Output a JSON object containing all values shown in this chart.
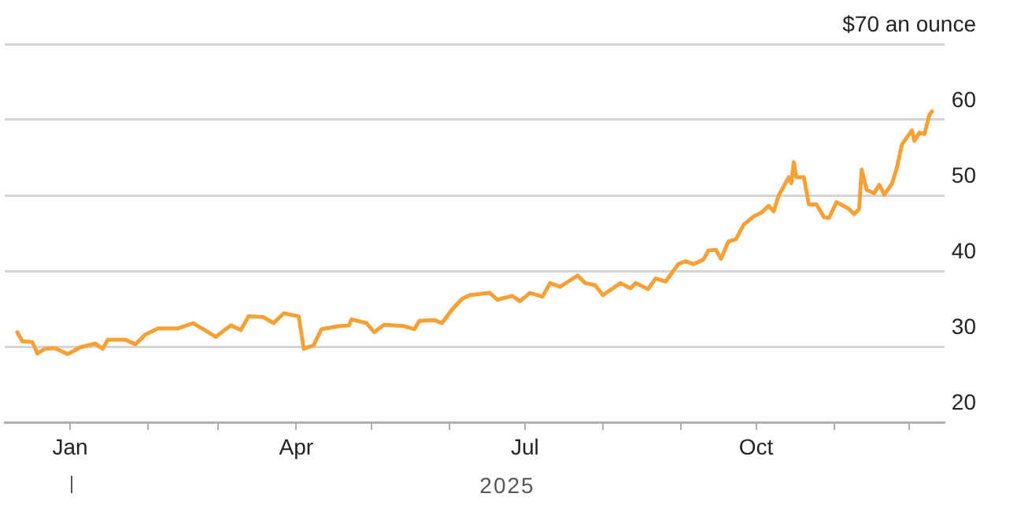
{
  "chart_data": {
    "type": "line",
    "x": [
      "2024-12-11",
      "2024-12-13",
      "2024-12-17",
      "2024-12-19",
      "2024-12-22",
      "2024-12-26",
      "2024-12-31",
      "2025-01-05",
      "2025-01-11",
      "2025-01-14",
      "2025-01-16",
      "2025-01-23",
      "2025-01-27",
      "2025-01-31",
      "2025-02-05",
      "2025-02-13",
      "2025-02-19",
      "2025-02-28",
      "2025-03-06",
      "2025-03-10",
      "2025-03-13",
      "2025-03-19",
      "2025-03-23",
      "2025-03-27",
      "2025-04-02",
      "2025-04-04",
      "2025-04-08",
      "2025-04-11",
      "2025-04-18",
      "2025-04-22",
      "2025-04-23",
      "2025-04-29",
      "2025-05-02",
      "2025-05-06",
      "2025-05-14",
      "2025-05-18",
      "2025-05-20",
      "2025-05-26",
      "2025-05-29",
      "2025-06-02",
      "2025-06-06",
      "2025-06-09",
      "2025-06-17",
      "2025-06-20",
      "2025-06-26",
      "2025-06-29",
      "2025-07-03",
      "2025-07-08",
      "2025-07-11",
      "2025-07-15",
      "2025-07-22",
      "2025-07-25",
      "2025-07-29",
      "2025-08-01",
      "2025-08-08",
      "2025-08-12",
      "2025-08-14",
      "2025-08-19",
      "2025-08-22",
      "2025-08-26",
      "2025-08-31",
      "2025-09-03",
      "2025-09-06",
      "2025-09-10",
      "2025-09-12",
      "2025-09-15",
      "2025-09-17",
      "2025-09-20",
      "2025-09-23",
      "2025-09-26",
      "2025-09-30",
      "2025-10-03",
      "2025-10-06",
      "2025-10-08",
      "2025-10-10",
      "2025-10-14",
      "2025-10-15",
      "2025-10-16",
      "2025-10-17",
      "2025-10-20",
      "2025-10-22",
      "2025-10-25",
      "2025-10-28",
      "2025-10-30",
      "2025-11-02",
      "2025-11-07",
      "2025-11-09",
      "2025-11-11",
      "2025-11-12",
      "2025-11-14",
      "2025-11-17",
      "2025-11-19",
      "2025-11-21",
      "2025-11-24",
      "2025-11-26",
      "2025-11-28",
      "2025-12-02",
      "2025-12-03",
      "2025-12-05",
      "2025-12-07",
      "2025-12-09",
      "2025-12-10"
    ],
    "series": [
      {
        "color": "#f7a035",
        "values": [
          31.9,
          30.7,
          30.6,
          29.1,
          29.7,
          29.8,
          29.0,
          29.9,
          30.4,
          29.7,
          30.9,
          30.9,
          30.3,
          31.6,
          32.4,
          32.4,
          33.1,
          31.3,
          32.8,
          32.2,
          34.0,
          33.9,
          33.1,
          34.4,
          34.0,
          29.7,
          30.2,
          32.3,
          32.7,
          32.8,
          33.6,
          33.1,
          31.9,
          32.9,
          32.7,
          32.3,
          33.4,
          33.5,
          33.1,
          34.9,
          36.3,
          36.8,
          37.1,
          36.2,
          36.7,
          36.0,
          37.1,
          36.6,
          38.4,
          37.9,
          39.4,
          38.4,
          38.1,
          36.8,
          38.4,
          37.7,
          38.4,
          37.6,
          39.0,
          38.6,
          40.9,
          41.3,
          40.9,
          41.5,
          42.7,
          42.8,
          41.6,
          43.9,
          44.2,
          46.1,
          47.2,
          47.7,
          48.6,
          47.9,
          50.0,
          52.4,
          51.6,
          54.4,
          52.4,
          52.4,
          48.8,
          48.8,
          47.1,
          47.0,
          49.1,
          48.2,
          47.5,
          48.2,
          53.4,
          50.7,
          50.3,
          51.4,
          50.1,
          51.5,
          53.6,
          56.7,
          58.6,
          57.2,
          58.3,
          58.1,
          60.7,
          61.1
        ]
      }
    ],
    "xlim": [
      "2024-12-06",
      "2025-12-15"
    ],
    "xticks": [
      {
        "value": "2025-01-01",
        "label": "Jan"
      },
      {
        "value": "2025-02-01",
        "label": null
      },
      {
        "value": "2025-03-01",
        "label": null
      },
      {
        "value": "2025-04-01",
        "label": "Apr"
      },
      {
        "value": "2025-05-01",
        "label": null
      },
      {
        "value": "2025-06-01",
        "label": null
      },
      {
        "value": "2025-07-01",
        "label": "Jul"
      },
      {
        "value": "2025-08-01",
        "label": null
      },
      {
        "value": "2025-09-01",
        "label": null
      },
      {
        "value": "2025-10-01",
        "label": "Oct"
      },
      {
        "value": "2025-11-01",
        "label": null
      },
      {
        "value": "2025-12-01",
        "label": null
      }
    ],
    "ylim": [
      20,
      70
    ],
    "yticks": [
      20,
      30,
      40,
      50,
      60,
      {
        "value": 70,
        "label": "$70 an ounce"
      }
    ],
    "grid": "y",
    "legend": false,
    "marker": "none",
    "line_style": "solid",
    "annotations": [
      "2025"
    ]
  }
}
